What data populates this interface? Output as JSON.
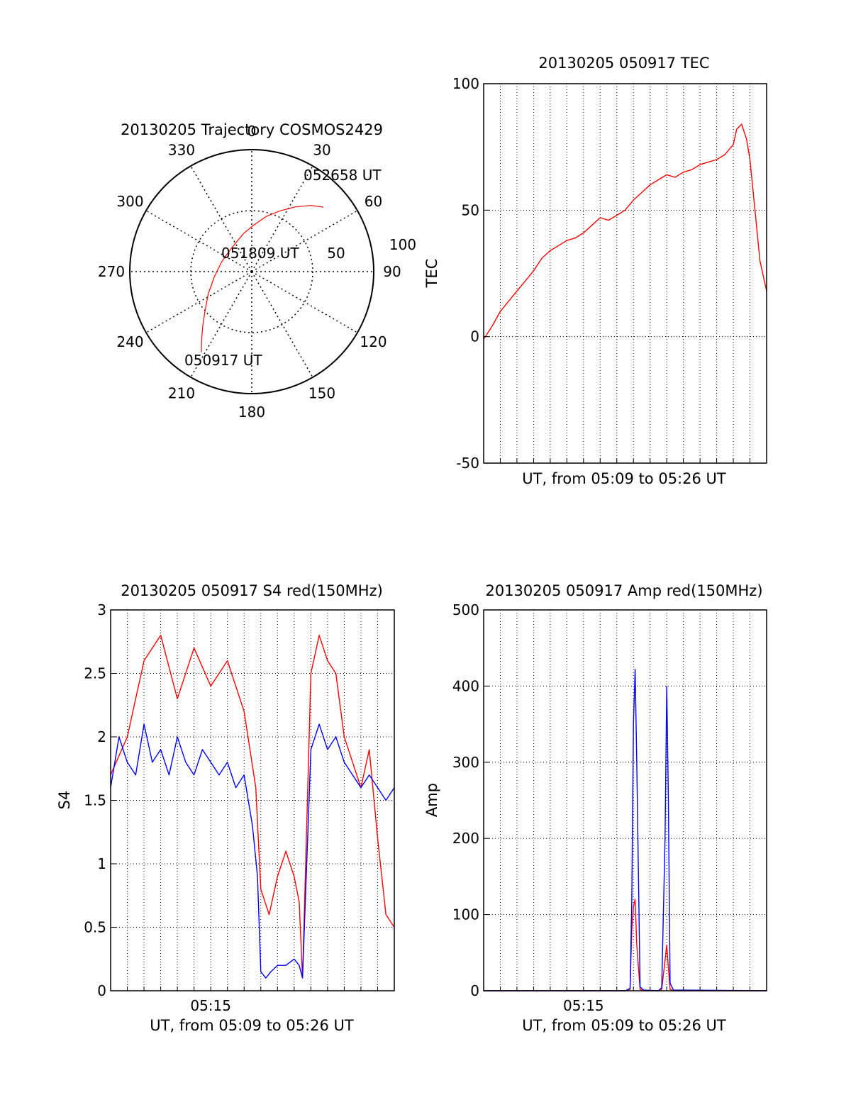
{
  "colors": {
    "red_channel": "#ff0000",
    "blue_channel": "#0000ff",
    "axes": "#000000",
    "grid": "#000000"
  },
  "chart_data": [
    {
      "id": "trajectory",
      "type": "scatter",
      "subtype": "polar",
      "title": "20130205 Trajectory COSMOS2429",
      "azimuth_labels": [
        "0",
        "30",
        "60",
        "90",
        "120",
        "150",
        "180",
        "210",
        "240",
        "270",
        "300",
        "330"
      ],
      "radial_labels": [
        "50",
        "100"
      ],
      "point_labels": {
        "start": "050917 UT",
        "mid": "051809 UT",
        "end": "052658 UT"
      },
      "series": [
        {
          "color": "#ff0000",
          "points": [
            {
              "az": 212,
              "r": 78
            },
            {
              "az": 216,
              "r": 70
            },
            {
              "az": 222,
              "r": 60
            },
            {
              "az": 230,
              "r": 50
            },
            {
              "az": 243,
              "r": 40
            },
            {
              "az": 262,
              "r": 31
            },
            {
              "az": 287,
              "r": 26
            },
            {
              "az": 312,
              "r": 25
            },
            {
              "az": 331,
              "r": 27
            },
            {
              "az": 348,
              "r": 32
            },
            {
              "az": 2,
              "r": 38
            },
            {
              "az": 15,
              "r": 47
            },
            {
              "az": 25,
              "r": 55
            },
            {
              "az": 34,
              "r": 64
            },
            {
              "az": 42,
              "r": 73
            },
            {
              "az": 48,
              "r": 79
            }
          ]
        }
      ],
      "rlim": [
        0,
        100
      ],
      "grid": true
    },
    {
      "id": "tec",
      "type": "line",
      "title": "20130205 050917 TEC",
      "xlabel": "UT, from 05:09 to 05:26 UT",
      "ylabel": "TEC",
      "xlim": [
        0,
        17
      ],
      "ylim": [
        -50,
        100
      ],
      "yticks": [
        "100",
        "50",
        "0",
        "-50"
      ],
      "xticks": [],
      "grid": true,
      "series": [
        {
          "color": "#ff0000",
          "x": [
            0,
            0.5,
            1,
            1.5,
            2,
            2.5,
            3,
            3.5,
            4,
            4.5,
            5,
            5.5,
            6,
            6.5,
            7,
            7.5,
            8,
            8.5,
            9,
            9.5,
            10,
            10.5,
            11,
            11.5,
            12,
            12.5,
            13,
            13.5,
            14,
            14.5,
            15,
            15.2,
            15.5,
            15.8,
            16,
            16.3,
            16.6,
            17
          ],
          "y": [
            -1,
            4,
            10,
            14,
            18,
            22,
            26,
            31,
            34,
            36,
            38,
            39,
            41,
            44,
            47,
            46,
            48,
            50,
            54,
            57,
            60,
            62,
            64,
            63,
            65,
            66,
            68,
            69,
            70,
            72,
            76,
            82,
            84,
            78,
            70,
            50,
            30,
            18
          ]
        }
      ]
    },
    {
      "id": "s4",
      "type": "line",
      "title": "20130205 050917 S4 red(150MHz)",
      "xlabel": "UT, from 05:09 to 05:26 UT",
      "ylabel": "S4",
      "xlim": [
        0,
        17
      ],
      "ylim": [
        0,
        3
      ],
      "yticks": [
        "3",
        "2.5",
        "2",
        "1.5",
        "1",
        "0.5",
        "0"
      ],
      "xticks": [
        {
          "x": 6,
          "label": "05:15"
        }
      ],
      "grid": true,
      "series": [
        {
          "color": "#ff0000",
          "x": [
            0,
            1,
            2,
            3,
            4,
            5,
            6,
            7,
            8,
            8.7,
            9,
            9.5,
            10,
            10.5,
            11,
            11.3,
            11.5,
            12,
            12.5,
            13,
            13.5,
            14,
            14.5,
            15,
            15.5,
            16,
            16.5,
            17
          ],
          "y": [
            1.7,
            2.0,
            2.6,
            2.8,
            2.3,
            2.7,
            2.4,
            2.6,
            2.2,
            1.6,
            0.8,
            0.6,
            0.9,
            1.1,
            0.9,
            0.7,
            0.1,
            2.5,
            2.8,
            2.6,
            2.5,
            2.0,
            1.8,
            1.6,
            1.9,
            1.2,
            0.6,
            0.5
          ]
        },
        {
          "color": "#0000ff",
          "x": [
            0,
            0.5,
            1,
            1.5,
            2,
            2.5,
            3,
            3.5,
            4,
            4.5,
            5,
            5.5,
            6,
            6.5,
            7,
            7.5,
            8,
            8.5,
            8.8,
            9,
            9.3,
            9.6,
            10,
            10.5,
            11,
            11.3,
            11.5,
            12,
            12.5,
            13,
            13.5,
            14,
            14.5,
            15,
            15.5,
            16,
            16.5,
            17
          ],
          "y": [
            1.6,
            2.0,
            1.8,
            1.7,
            2.1,
            1.8,
            1.9,
            1.7,
            2.0,
            1.8,
            1.7,
            1.9,
            1.8,
            1.7,
            1.8,
            1.6,
            1.7,
            1.3,
            0.9,
            0.15,
            0.1,
            0.15,
            0.2,
            0.2,
            0.25,
            0.2,
            0.1,
            1.9,
            2.1,
            1.9,
            2.0,
            1.8,
            1.7,
            1.6,
            1.7,
            1.6,
            1.5,
            1.6
          ]
        }
      ]
    },
    {
      "id": "amp",
      "type": "line",
      "title": "20130205 050917 Amp red(150MHz)",
      "xlabel": "UT, from 05:09 to 05:26 UT",
      "ylabel": "Amp",
      "xlim": [
        0,
        17
      ],
      "ylim": [
        0,
        500
      ],
      "yticks": [
        "500",
        "400",
        "300",
        "200",
        "100",
        "0"
      ],
      "xticks": [
        {
          "x": 6,
          "label": "05:15"
        }
      ],
      "grid": true,
      "series": [
        {
          "color": "#ff0000",
          "x": [
            0,
            8.5,
            8.8,
            8.9,
            9.0,
            9.1,
            9.2,
            9.4,
            9.6,
            10.5,
            10.7,
            10.9,
            11.0,
            11.1,
            11.2,
            11.4,
            17
          ],
          "y": [
            0,
            0,
            2,
            80,
            110,
            120,
            60,
            2,
            0,
            0,
            2,
            40,
            60,
            30,
            2,
            0,
            0
          ]
        },
        {
          "color": "#0000ff",
          "x": [
            0,
            8.5,
            8.8,
            8.9,
            9.0,
            9.1,
            9.2,
            9.4,
            9.6,
            10.5,
            10.7,
            10.9,
            11.0,
            11.1,
            11.2,
            11.4,
            17
          ],
          "y": [
            0,
            0,
            3,
            120,
            350,
            422,
            300,
            5,
            1,
            0,
            4,
            200,
            400,
            250,
            10,
            1,
            0
          ]
        }
      ]
    }
  ]
}
